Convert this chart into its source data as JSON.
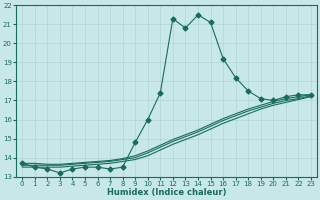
{
  "xlabel": "Humidex (Indice chaleur)",
  "xlim": [
    -0.5,
    23.5
  ],
  "ylim": [
    13,
    22
  ],
  "xticks": [
    0,
    1,
    2,
    3,
    4,
    5,
    6,
    7,
    8,
    9,
    10,
    11,
    12,
    13,
    14,
    15,
    16,
    17,
    18,
    19,
    20,
    21,
    22,
    23
  ],
  "yticks": [
    13,
    14,
    15,
    16,
    17,
    18,
    19,
    20,
    21,
    22
  ],
  "line_color": "#1a6b5a",
  "bg_color": "#c8e8e8",
  "grid_color": "#b0d4d4",
  "lines": [
    {
      "x": [
        0,
        1,
        2,
        3,
        4,
        5,
        6,
        7,
        8,
        9,
        10,
        11,
        12,
        13,
        14,
        15,
        16,
        17,
        18,
        19,
        20,
        21,
        22,
        23
      ],
      "y": [
        13.7,
        13.5,
        13.4,
        13.2,
        13.4,
        13.5,
        13.5,
        13.4,
        13.5,
        14.8,
        16.0,
        17.4,
        21.3,
        20.8,
        21.5,
        21.1,
        19.2,
        18.2,
        17.5,
        17.1,
        17.0,
        17.2,
        17.3,
        17.3
      ],
      "marker": "D",
      "markersize": 2.5,
      "linewidth": 0.8
    },
    {
      "x": [
        0,
        1,
        2,
        3,
        4,
        5,
        6,
        7,
        8,
        9,
        10,
        11,
        12,
        13,
        14,
        15,
        16,
        17,
        18,
        19,
        20,
        21,
        22,
        23
      ],
      "y": [
        13.5,
        13.5,
        13.5,
        13.5,
        13.55,
        13.6,
        13.65,
        13.7,
        13.8,
        13.9,
        14.1,
        14.4,
        14.7,
        14.95,
        15.2,
        15.5,
        15.8,
        16.05,
        16.3,
        16.55,
        16.75,
        16.9,
        17.05,
        17.2
      ],
      "marker": null,
      "markersize": 0,
      "linewidth": 0.8
    },
    {
      "x": [
        0,
        1,
        2,
        3,
        4,
        5,
        6,
        7,
        8,
        9,
        10,
        11,
        12,
        13,
        14,
        15,
        16,
        17,
        18,
        19,
        20,
        21,
        22,
        23
      ],
      "y": [
        13.6,
        13.6,
        13.6,
        13.6,
        13.65,
        13.7,
        13.75,
        13.8,
        13.9,
        14.0,
        14.25,
        14.55,
        14.85,
        15.1,
        15.35,
        15.65,
        15.95,
        16.2,
        16.45,
        16.65,
        16.85,
        17.0,
        17.1,
        17.25
      ],
      "marker": null,
      "markersize": 0,
      "linewidth": 0.8
    },
    {
      "x": [
        0,
        1,
        2,
        3,
        4,
        5,
        6,
        7,
        8,
        9,
        10,
        11,
        12,
        13,
        14,
        15,
        16,
        17,
        18,
        19,
        20,
        21,
        22,
        23
      ],
      "y": [
        13.7,
        13.7,
        13.65,
        13.65,
        13.7,
        13.75,
        13.8,
        13.85,
        13.95,
        14.1,
        14.35,
        14.65,
        14.95,
        15.2,
        15.45,
        15.75,
        16.05,
        16.3,
        16.55,
        16.75,
        16.95,
        17.1,
        17.2,
        17.3
      ],
      "marker": null,
      "markersize": 0,
      "linewidth": 0.8
    }
  ]
}
